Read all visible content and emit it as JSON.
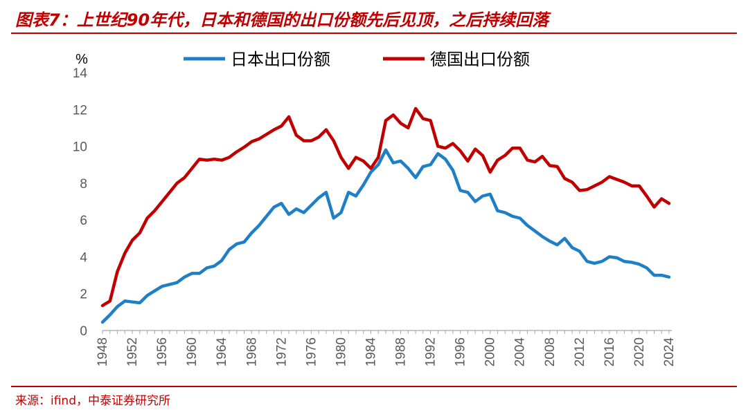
{
  "title": "图表7：上世纪90年代，日本和德国的出口份额先后见顶，之后持续回落",
  "source": "来源：ifind，中泰证券研究所",
  "chart_data": {
    "type": "line",
    "ylabel": "%",
    "ylim": [
      0,
      14
    ],
    "yticks": [
      0,
      2,
      4,
      6,
      8,
      10,
      12,
      14
    ],
    "xlim": [
      1948,
      2024
    ],
    "xticks": [
      1948,
      1952,
      1956,
      1960,
      1964,
      1968,
      1972,
      1976,
      1980,
      1984,
      1988,
      1992,
      1996,
      2000,
      2004,
      2008,
      2012,
      2016,
      2020,
      2024
    ],
    "grid": false,
    "legend_position": "top",
    "x": [
      1948,
      1949,
      1950,
      1951,
      1952,
      1953,
      1954,
      1955,
      1956,
      1957,
      1958,
      1959,
      1960,
      1961,
      1962,
      1963,
      1964,
      1965,
      1966,
      1967,
      1968,
      1969,
      1970,
      1971,
      1972,
      1973,
      1974,
      1975,
      1976,
      1977,
      1978,
      1979,
      1980,
      1981,
      1982,
      1983,
      1984,
      1985,
      1986,
      1987,
      1988,
      1989,
      1990,
      1991,
      1992,
      1993,
      1994,
      1995,
      1996,
      1997,
      1998,
      1999,
      2000,
      2001,
      2002,
      2003,
      2004,
      2005,
      2006,
      2007,
      2008,
      2009,
      2010,
      2011,
      2012,
      2013,
      2014,
      2015,
      2016,
      2017,
      2018,
      2019,
      2020,
      2021,
      2022,
      2023,
      2024
    ],
    "series": [
      {
        "name": "日本出口份额",
        "color": "#1f7fc6",
        "values": [
          0.45,
          0.85,
          1.3,
          1.6,
          1.55,
          1.5,
          1.9,
          2.15,
          2.4,
          2.5,
          2.6,
          2.9,
          3.1,
          3.1,
          3.4,
          3.5,
          3.8,
          4.4,
          4.7,
          4.8,
          5.3,
          5.7,
          6.2,
          6.7,
          6.9,
          6.3,
          6.6,
          6.4,
          6.8,
          7.2,
          7.5,
          6.1,
          6.4,
          7.5,
          7.3,
          7.9,
          8.6,
          9.0,
          9.8,
          9.1,
          9.2,
          8.8,
          8.3,
          8.9,
          9.0,
          9.6,
          9.3,
          8.7,
          7.6,
          7.5,
          7.0,
          7.3,
          7.4,
          6.5,
          6.4,
          6.2,
          6.1,
          5.7,
          5.4,
          5.1,
          4.85,
          4.65,
          5.0,
          4.5,
          4.3,
          3.75,
          3.65,
          3.75,
          4.0,
          3.95,
          3.75,
          3.7,
          3.6,
          3.4,
          3.0,
          3.0,
          2.9
        ]
      },
      {
        "name": "德国出口份额",
        "color": "#c00000",
        "values": [
          1.35,
          1.6,
          3.2,
          4.2,
          4.9,
          5.3,
          6.1,
          6.5,
          7.0,
          7.5,
          8.0,
          8.3,
          8.8,
          9.3,
          9.25,
          9.3,
          9.25,
          9.4,
          9.7,
          9.95,
          10.25,
          10.4,
          10.65,
          10.9,
          11.1,
          11.6,
          10.6,
          10.3,
          10.3,
          10.5,
          10.9,
          10.3,
          9.4,
          8.8,
          9.4,
          9.2,
          8.8,
          9.4,
          11.4,
          11.7,
          11.25,
          11.0,
          12.05,
          11.5,
          11.4,
          10.0,
          9.9,
          10.15,
          9.75,
          9.2,
          9.85,
          9.5,
          8.6,
          9.25,
          9.5,
          9.9,
          9.9,
          9.25,
          9.15,
          9.45,
          8.95,
          8.9,
          8.25,
          8.05,
          7.6,
          7.65,
          7.85,
          8.05,
          8.35,
          8.2,
          8.05,
          7.85,
          7.85,
          7.3,
          6.7,
          7.15,
          6.9
        ]
      }
    ]
  }
}
